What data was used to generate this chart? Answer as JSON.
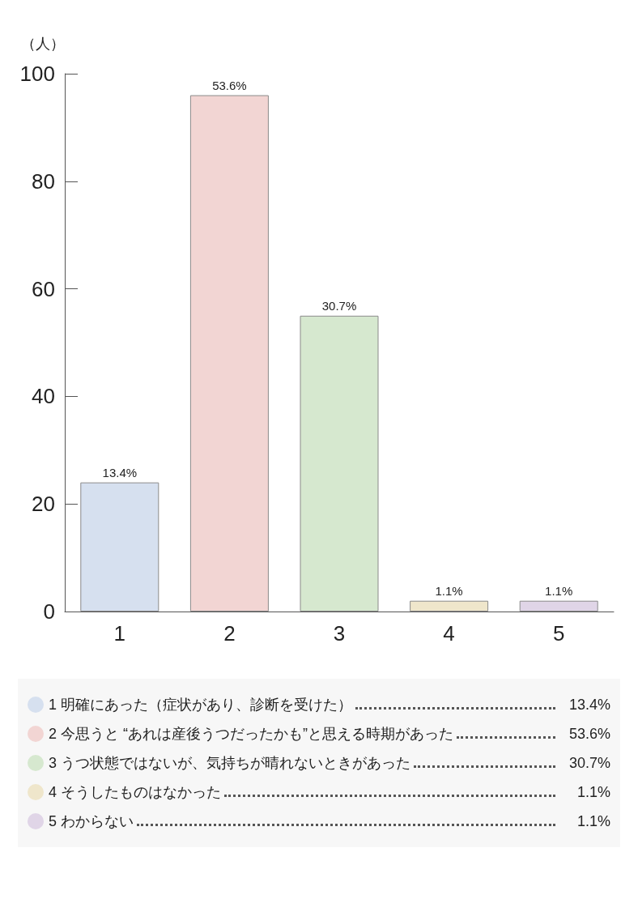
{
  "chart_data": {
    "type": "bar",
    "ylabel": "（人）",
    "categories": [
      "1",
      "2",
      "3",
      "4",
      "5"
    ],
    "ylim": [
      0,
      100
    ],
    "yticks": [
      0,
      20,
      40,
      60,
      80,
      100
    ],
    "grid": false,
    "legend": "bottom",
    "series": [
      {
        "name": "1 明確にあった（症状があり、診断を受けた）",
        "color": "#d6e0ef",
        "values": [
          24,
          null,
          null,
          null,
          null
        ]
      },
      {
        "name": "2 今思うと “あれは産後うつだったかも”と思える時期があった",
        "color": "#f2d5d3",
        "values": [
          null,
          96,
          null,
          null,
          null
        ]
      },
      {
        "name": "3 うつ状態ではないが、気持ちが晴れないときがあった",
        "color": "#d6e8cf",
        "values": [
          null,
          null,
          55,
          null,
          null
        ]
      },
      {
        "name": "4 そうしたものはなかった",
        "color": "#efe6cb",
        "values": [
          null,
          null,
          null,
          2,
          null
        ]
      },
      {
        "name": "5 わからない",
        "color": "#e0d5e7",
        "values": [
          null,
          null,
          null,
          null,
          2
        ]
      }
    ],
    "annotations": [
      {
        "text": "13.4%",
        "x": "1",
        "y": 24
      },
      {
        "text": "53.6%",
        "x": "2",
        "y": 96
      },
      {
        "text": "30.7%",
        "x": "3",
        "y": 55
      },
      {
        "text": "1.1%",
        "x": "4",
        "y": 2
      },
      {
        "text": "1.1%",
        "x": "5",
        "y": 2
      }
    ]
  }
}
